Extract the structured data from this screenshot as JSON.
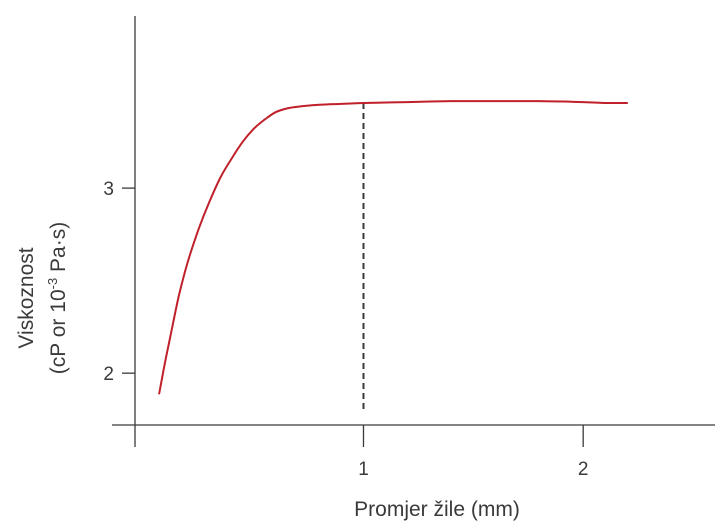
{
  "chart_data": {
    "type": "line",
    "xlabel": "Promjer žile (mm)",
    "ylabel_line1": "Viskoznost",
    "ylabel_line2_prefix": "(cP or 10",
    "ylabel_line2_exponent": "-3",
    "ylabel_line2_suffix": " Pa·s)",
    "x_ticks": [
      {
        "value": 1,
        "label": "1"
      },
      {
        "value": 2,
        "label": "2"
      }
    ],
    "y_ticks": [
      {
        "value": 2,
        "label": "2"
      },
      {
        "value": 3,
        "label": "3"
      }
    ],
    "xlim": [
      -0.04,
      2.6
    ],
    "ylim": [
      1.72,
      3.93
    ],
    "reference_x": 1,
    "series": [
      {
        "color": "#c0202a",
        "x": [
          0.07,
          0.1,
          0.13,
          0.16,
          0.2,
          0.25,
          0.3,
          0.35,
          0.4,
          0.45,
          0.5,
          0.55,
          0.6,
          0.65,
          0.7,
          0.8,
          0.9,
          1.0,
          1.2,
          1.4,
          1.6,
          1.8,
          2.0,
          2.1,
          2.2
        ],
        "y": [
          1.89,
          2.08,
          2.25,
          2.42,
          2.6,
          2.78,
          2.93,
          3.06,
          3.16,
          3.25,
          3.32,
          3.37,
          3.41,
          3.43,
          3.44,
          3.45,
          3.455,
          3.46,
          3.465,
          3.47,
          3.47,
          3.47,
          3.465,
          3.46,
          3.46
        ]
      }
    ],
    "grid": false,
    "legend": "none"
  }
}
